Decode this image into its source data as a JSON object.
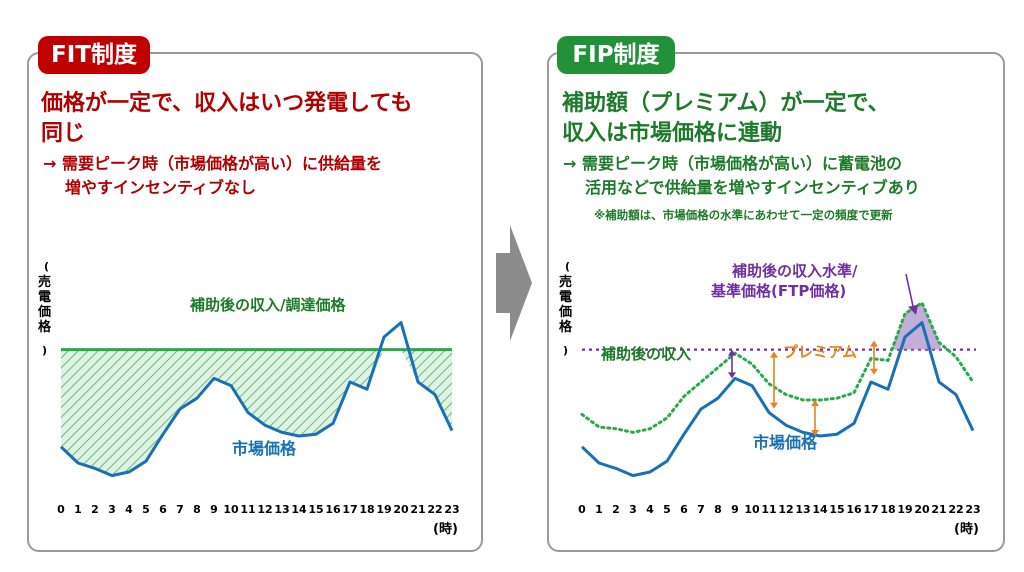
{
  "fit": {
    "badge": "FIT制度",
    "headline_line1": "価格が一定で、収入はいつ発電しても",
    "headline_line2": "同じ",
    "sub_line1": "→ 需要ピーク時（市場価格が高い）に供給量を",
    "sub_line2": "増やすインセンティブなし"
  },
  "fip": {
    "badge": "FIP制度",
    "headline_line1": "補助額（プレミアム）が一定で、",
    "headline_line2": "収入は市場価格に連動",
    "sub_line1": "→ 需要ピーク時（市場価格が高い）に蓄電池の",
    "sub_line2": "活用などで供給量を増やすインセンティブあり",
    "note": "※補助額は、市場価格の水準にあわせて一定の頻度で更新"
  },
  "chart_data": [
    {
      "type": "line",
      "ylabel": "（売電価格）",
      "xlabel": "（時）",
      "x": [
        0,
        1,
        2,
        3,
        4,
        5,
        6,
        7,
        8,
        9,
        10,
        11,
        12,
        13,
        14,
        15,
        16,
        17,
        18,
        19,
        20,
        21,
        22,
        23
      ],
      "series": [
        {
          "name": "市場価格",
          "values": [
            34,
            25,
            22,
            18,
            20,
            26,
            41,
            55,
            61,
            72,
            68,
            53,
            46,
            42,
            40,
            41,
            47,
            70,
            66,
            95,
            103,
            70,
            63,
            43
          ],
          "color": "#1b6fb5"
        },
        {
          "name": "補助後の収入/調達価格",
          "values": [
            88,
            88,
            88,
            88,
            88,
            88,
            88,
            88,
            88,
            88,
            88,
            88,
            88,
            88,
            88,
            88,
            88,
            88,
            88,
            88,
            88,
            88,
            88,
            88
          ],
          "color": "#2aa84a"
        }
      ],
      "fill": "hatched area between 補助後の収入/調達価格 and 市場価格"
    },
    {
      "type": "line",
      "ylabel": "（売電価格）",
      "xlabel": "（時）",
      "x": [
        0,
        1,
        2,
        3,
        4,
        5,
        6,
        7,
        8,
        9,
        10,
        11,
        12,
        13,
        14,
        15,
        16,
        17,
        18,
        19,
        20,
        21,
        22,
        23
      ],
      "series": [
        {
          "name": "市場価格",
          "values": [
            34,
            25,
            22,
            18,
            20,
            26,
            41,
            55,
            61,
            72,
            68,
            53,
            46,
            42,
            40,
            41,
            47,
            70,
            66,
            95,
            103,
            70,
            63,
            43
          ],
          "color": "#1b6fb5"
        },
        {
          "name": "補助後の収入",
          "values": [
            52,
            45,
            44,
            42,
            44,
            50,
            62,
            70,
            78,
            86,
            80,
            69,
            63,
            60,
            60,
            61,
            64,
            83,
            82,
            108,
            114,
            92,
            84,
            70
          ],
          "color": "#2aa84a"
        },
        {
          "name": "補助後の収入水準/基準価格(FTP価格)",
          "values": [
            88,
            88,
            88,
            88,
            88,
            88,
            88,
            88,
            88,
            88,
            88,
            88,
            88,
            88,
            88,
            88,
            88,
            88,
            88,
            88,
            88,
            88,
            88,
            88
          ],
          "color": "#7030a0"
        }
      ],
      "annotations": [
        "プレミアム",
        "補助後の収入水準/",
        "基準価格(FTP価格)"
      ]
    }
  ],
  "labels": {
    "fit_market": "市場価格",
    "fit_fixed": "補助後の収入/調達価格",
    "fip_market": "市場価格",
    "fip_income": "補助後の収入",
    "fip_premium": "プレミアム",
    "fip_level_line1": "補助後の収入水準/",
    "fip_level_line2": "基準価格(FTP価格)",
    "ylabel_chars": [
      "売",
      "電",
      "価",
      "格"
    ],
    "xunit": "(時)"
  },
  "colors": {
    "fit_red": "#c00000",
    "fip_green": "#23913a",
    "market_blue": "#1b6fb5",
    "premium_orange": "#e8821e",
    "level_purple": "#7030a0"
  }
}
